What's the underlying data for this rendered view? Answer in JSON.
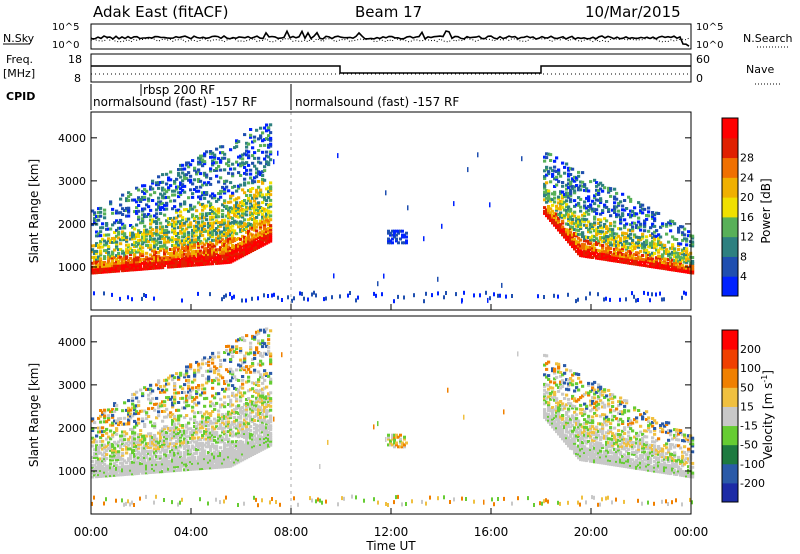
{
  "header": {
    "station": "Adak East (fitACF)",
    "beam": "Beam 17",
    "date": "10/Mar/2015"
  },
  "sky_panel": {
    "label": "N.Sky",
    "tick_top": "10^5",
    "tick_bottom": "10^0",
    "right_label": "N.Search",
    "right_tick_top": "10^5",
    "right_tick_bottom": "10^0"
  },
  "freq_panel": {
    "label_line1": "Freq.",
    "label_line2": "[MHz]",
    "tick_top": "18",
    "tick_bottom": "8",
    "right_label": "Nave",
    "right_tick_top": "60",
    "right_tick_bottom": "0"
  },
  "cpid": {
    "label": "CPID",
    "segments": [
      {
        "text": "normalsound (fast) -157 RF",
        "start_hour": 0
      },
      {
        "text": "rbsp 200 RF",
        "start_hour": 2.0
      },
      {
        "text": "normalsound (fast) -157 RF",
        "start_hour": 8.0
      }
    ]
  },
  "chart_data": [
    {
      "type": "heatmap",
      "panel": "power",
      "ylabel": "Slant Range [km]",
      "yticks": [
        1000,
        2000,
        3000,
        4000
      ],
      "ylim": [
        0,
        4600
      ],
      "xlim": [
        0,
        24
      ],
      "colorbar": {
        "label": "Power [dB]",
        "ticks": [
          "4",
          "8",
          "12",
          "16",
          "20",
          "24",
          "28"
        ],
        "colors": [
          "#0022ff",
          "#1f4fb0",
          "#2e8080",
          "#58b058",
          "#f0e000",
          "#f0b000",
          "#f07000",
          "#e02000",
          "#ff0000"
        ]
      },
      "echo_regions": [
        {
          "x": [
            0.0,
            7.2
          ],
          "range_km": [
            800,
            4300
          ],
          "note": "dense echoes, range increasing with time"
        },
        {
          "x": [
            11.8,
            12.6
          ],
          "range_km": [
            1550,
            1850
          ]
        },
        {
          "x": [
            18.0,
            24.0
          ],
          "range_km": [
            800,
            3700
          ],
          "note": "dense echoes, range decreasing with time"
        }
      ]
    },
    {
      "type": "heatmap",
      "panel": "velocity",
      "ylabel": "Slant Range [km]",
      "xlabel": "Time UT",
      "xticks": [
        "00:00",
        "04:00",
        "08:00",
        "12:00",
        "16:00",
        "20:00",
        "00:00"
      ],
      "yticks": [
        1000,
        2000,
        3000,
        4000
      ],
      "ylim": [
        0,
        4600
      ],
      "xlim": [
        0,
        24
      ],
      "colorbar": {
        "label": "Velocity [m s^-1]",
        "ticks": [
          "200",
          "100",
          "50",
          "15",
          "-15",
          "-50",
          "-100",
          "-200"
        ],
        "colors": [
          "#1c2ba6",
          "#2a5aa8",
          "#1e7a40",
          "#66cc33",
          "#c8c8c8",
          "#f0c040",
          "#f08000",
          "#f04000",
          "#ff0000"
        ]
      },
      "echo_regions": [
        {
          "x": [
            0.0,
            7.2
          ],
          "range_km": [
            800,
            4300
          ],
          "dominant": "-15 to 15"
        },
        {
          "x": [
            11.8,
            12.6
          ],
          "range_km": [
            1600,
            1800
          ],
          "dominant": "-50"
        },
        {
          "x": [
            18.0,
            24.0
          ],
          "range_km": [
            800,
            3700
          ],
          "dominant": "-15 to 15"
        }
      ]
    }
  ]
}
